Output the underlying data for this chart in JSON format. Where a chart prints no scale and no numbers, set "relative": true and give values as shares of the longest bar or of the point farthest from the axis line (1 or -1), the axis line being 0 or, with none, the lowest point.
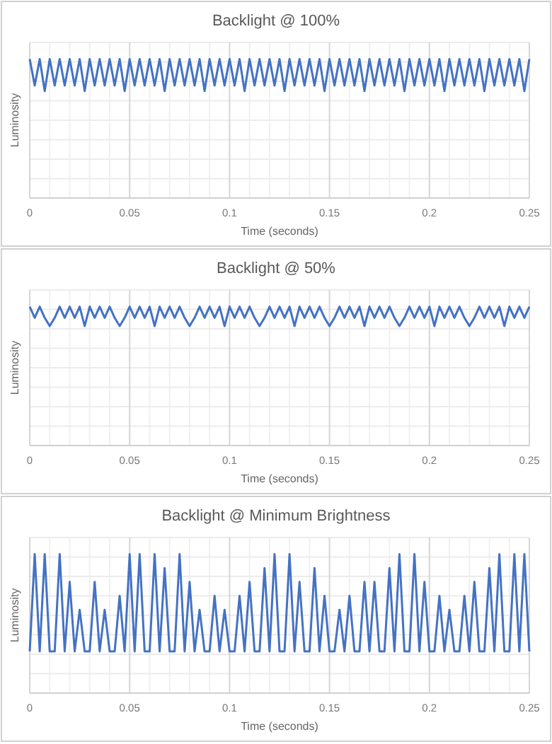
{
  "chart_data": [
    {
      "type": "line",
      "title": "Backlight @ 100%",
      "xlabel": "Time (seconds)",
      "ylabel": "Luminosity",
      "relative": true,
      "grid": true,
      "xlim": [
        0,
        0.25
      ],
      "xticks": [
        0,
        0.05,
        0.1,
        0.15,
        0.2,
        0.25
      ],
      "x": [
        0,
        0.0025,
        0.005,
        0.0075,
        0.01,
        0.0125,
        0.015,
        0.0175,
        0.02,
        0.0225,
        0.025,
        0.0275,
        0.03,
        0.0325,
        0.035,
        0.0375,
        0.04,
        0.0425,
        0.045,
        0.0475,
        0.05,
        0.0525,
        0.055,
        0.0575,
        0.06,
        0.0625,
        0.065,
        0.0675,
        0.07,
        0.0725,
        0.075,
        0.0775,
        0.08,
        0.0825,
        0.085,
        0.0875,
        0.09,
        0.0925,
        0.095,
        0.0975,
        0.1,
        0.1025,
        0.105,
        0.1075,
        0.11,
        0.1125,
        0.115,
        0.1175,
        0.12,
        0.1225,
        0.125,
        0.1275,
        0.13,
        0.1325,
        0.135,
        0.1375,
        0.14,
        0.1425,
        0.145,
        0.1475,
        0.15,
        0.1525,
        0.155,
        0.1575,
        0.16,
        0.1625,
        0.165,
        0.1675,
        0.17,
        0.1725,
        0.175,
        0.1775,
        0.18,
        0.1825,
        0.185,
        0.1875,
        0.19,
        0.1925,
        0.195,
        0.1975,
        0.2,
        0.2025,
        0.205,
        0.2075,
        0.21,
        0.2125,
        0.215,
        0.2175,
        0.22,
        0.2225,
        0.225,
        0.2275,
        0.23,
        0.2325,
        0.235,
        0.2375,
        0.24,
        0.2425,
        0.245,
        0.2475,
        0.25
      ],
      "series": [
        {
          "color": "#4472c4",
          "values": [
            1,
            0.81,
            1,
            0.77,
            1,
            0.81,
            1,
            0.81,
            1,
            0.81,
            1,
            0.77,
            1,
            0.81,
            1,
            0.81,
            1,
            0.81,
            1,
            0.77,
            1,
            0.81,
            1,
            0.81,
            1,
            0.81,
            1,
            0.77,
            1,
            0.81,
            1,
            0.81,
            1,
            0.81,
            1,
            0.77,
            1,
            0.81,
            1,
            0.81,
            1,
            0.81,
            1,
            0.77,
            1,
            0.81,
            1,
            0.81,
            1,
            0.81,
            1,
            0.77,
            1,
            0.81,
            1,
            0.81,
            1,
            0.81,
            1,
            0.77,
            1,
            0.81,
            1,
            0.81,
            1,
            0.81,
            1,
            0.77,
            1,
            0.81,
            1,
            0.81,
            1,
            0.81,
            1,
            0.77,
            1,
            0.81,
            1,
            0.81,
            1,
            0.81,
            1,
            0.77,
            1,
            0.81,
            1,
            0.81,
            1,
            0.81,
            1,
            0.77,
            1,
            0.81,
            1,
            0.81,
            1,
            0.81,
            1,
            0.77,
            1
          ]
        }
      ]
    },
    {
      "type": "line",
      "title": "Backlight @ 50%",
      "xlabel": "Time (seconds)",
      "ylabel": "Luminosity",
      "relative": true,
      "grid": true,
      "xlim": [
        0,
        0.25
      ],
      "xticks": [
        0,
        0.05,
        0.1,
        0.15,
        0.2,
        0.25
      ],
      "x": [
        0,
        0.0025,
        0.005,
        0.0075,
        0.01,
        0.0125,
        0.015,
        0.0175,
        0.02,
        0.0225,
        0.025,
        0.0275,
        0.03,
        0.0325,
        0.035,
        0.0375,
        0.04,
        0.0425,
        0.045,
        0.0475,
        0.05,
        0.0525,
        0.055,
        0.0575,
        0.06,
        0.0625,
        0.065,
        0.0675,
        0.07,
        0.0725,
        0.075,
        0.0775,
        0.08,
        0.0825,
        0.085,
        0.0875,
        0.09,
        0.0925,
        0.095,
        0.0975,
        0.1,
        0.1025,
        0.105,
        0.1075,
        0.11,
        0.1125,
        0.115,
        0.1175,
        0.12,
        0.1225,
        0.125,
        0.1275,
        0.13,
        0.1325,
        0.135,
        0.1375,
        0.14,
        0.1425,
        0.145,
        0.1475,
        0.15,
        0.1525,
        0.155,
        0.1575,
        0.16,
        0.1625,
        0.165,
        0.1675,
        0.17,
        0.1725,
        0.175,
        0.1775,
        0.18,
        0.1825,
        0.185,
        0.1875,
        0.19,
        0.1925,
        0.195,
        0.1975,
        0.2,
        0.2025,
        0.205,
        0.2075,
        0.21,
        0.2125,
        0.215,
        0.2175,
        0.22,
        0.2225,
        0.225,
        0.2275,
        0.23,
        0.2325,
        0.235,
        0.2375,
        0.24,
        0.2425,
        0.245,
        0.2475,
        0.25
      ],
      "series": [
        {
          "color": "#4472c4",
          "values": [
            1,
            0.92,
            1,
            0.92,
            0.86,
            0.92,
            1,
            0.92,
            1,
            0.92,
            1,
            0.86,
            1,
            0.92,
            1,
            0.92,
            1,
            0.92,
            0.86,
            0.92,
            1,
            0.92,
            1,
            0.92,
            1,
            0.86,
            1,
            0.92,
            1,
            0.92,
            1,
            0.92,
            0.86,
            0.92,
            1,
            0.92,
            1,
            0.92,
            1,
            0.86,
            1,
            0.92,
            1,
            0.92,
            1,
            0.92,
            0.86,
            0.92,
            1,
            0.92,
            1,
            0.92,
            1,
            0.86,
            1,
            0.92,
            1,
            0.92,
            1,
            0.92,
            0.86,
            0.92,
            1,
            0.92,
            1,
            0.92,
            1,
            0.86,
            1,
            0.92,
            1,
            0.92,
            1,
            0.92,
            0.86,
            0.92,
            1,
            0.92,
            1,
            0.92,
            1,
            0.86,
            1,
            0.92,
            1,
            0.92,
            1,
            0.92,
            0.86,
            0.92,
            1,
            0.92,
            1,
            0.92,
            1,
            0.86,
            1,
            0.92,
            1,
            0.92,
            1
          ]
        }
      ]
    },
    {
      "type": "line",
      "title": "Backlight @ Minimum Brightness",
      "xlabel": "Time (seconds)",
      "ylabel": "Luminosity",
      "relative": true,
      "grid": true,
      "xlim": [
        0,
        0.25
      ],
      "xticks": [
        0,
        0.05,
        0.1,
        0.15,
        0.2,
        0.25
      ],
      "x": [
        0,
        0.0025,
        0.005,
        0.0075,
        0.01,
        0.0125,
        0.015,
        0.0175,
        0.02,
        0.0225,
        0.025,
        0.0275,
        0.03,
        0.0325,
        0.035,
        0.0375,
        0.04,
        0.0425,
        0.045,
        0.0475,
        0.05,
        0.0525,
        0.055,
        0.0575,
        0.06,
        0.0625,
        0.065,
        0.0675,
        0.07,
        0.0725,
        0.075,
        0.0775,
        0.08,
        0.0825,
        0.085,
        0.0875,
        0.09,
        0.0925,
        0.095,
        0.0975,
        0.1,
        0.1025,
        0.105,
        0.1075,
        0.11,
        0.1125,
        0.115,
        0.1175,
        0.12,
        0.1225,
        0.125,
        0.1275,
        0.13,
        0.1325,
        0.135,
        0.1375,
        0.14,
        0.1425,
        0.145,
        0.1475,
        0.15,
        0.1525,
        0.155,
        0.1575,
        0.16,
        0.1625,
        0.165,
        0.1675,
        0.17,
        0.1725,
        0.175,
        0.1775,
        0.18,
        0.1825,
        0.185,
        0.1875,
        0.19,
        0.1925,
        0.195,
        0.1975,
        0.2,
        0.2025,
        0.205,
        0.2075,
        0.21,
        0.2125,
        0.215,
        0.2175,
        0.22,
        0.2225,
        0.225,
        0.2275,
        0.23,
        0.2325,
        0.235,
        0.2375,
        0.24,
        0.2425,
        0.245,
        0.2475,
        0.25
      ],
      "series": [
        {
          "color": "#4472c4",
          "values": [
            0.3,
            1,
            0.3,
            1,
            0.3,
            0.3,
            1,
            0.3,
            0.8,
            0.3,
            0.6,
            0.3,
            0.3,
            0.8,
            0.3,
            0.6,
            0.3,
            0.3,
            0.7,
            0.3,
            1,
            0.3,
            1,
            0.3,
            0.3,
            1,
            0.3,
            0.9,
            0.3,
            0.3,
            1,
            0.3,
            0.8,
            0.3,
            0.6,
            0.3,
            0.3,
            0.7,
            0.3,
            0.6,
            0.3,
            0.3,
            0.7,
            0.3,
            0.8,
            0.3,
            0.3,
            0.9,
            0.3,
            1,
            0.3,
            0.3,
            1,
            0.3,
            0.8,
            0.3,
            0.3,
            0.9,
            0.3,
            0.7,
            0.3,
            0.3,
            0.6,
            0.3,
            0.7,
            0.3,
            0.3,
            0.8,
            0.3,
            0.8,
            0.3,
            0.3,
            0.9,
            0.3,
            1,
            0.3,
            0.3,
            1,
            0.3,
            0.8,
            0.3,
            0.3,
            0.7,
            0.3,
            0.6,
            0.3,
            0.3,
            0.7,
            0.3,
            0.8,
            0.3,
            0.3,
            0.9,
            0.3,
            1,
            0.3,
            0.3,
            1,
            0.3,
            1,
            0.3
          ]
        }
      ]
    }
  ]
}
